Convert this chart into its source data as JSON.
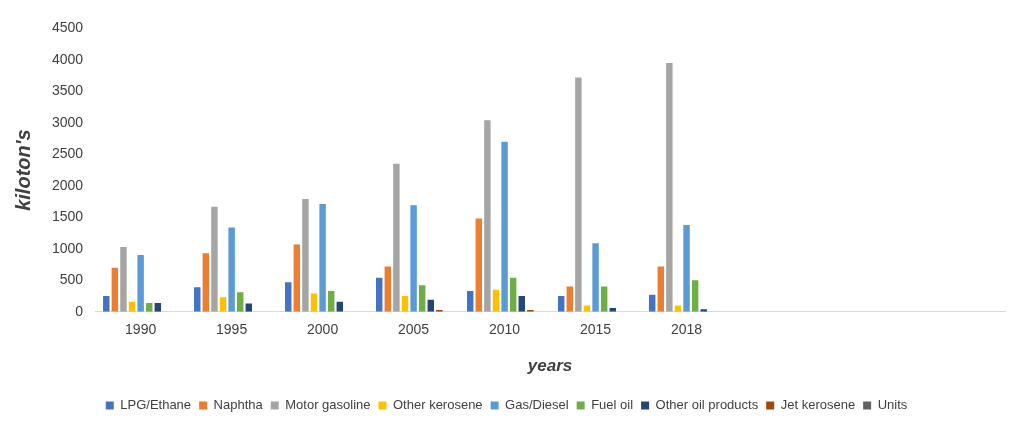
{
  "chart_data": {
    "type": "bar",
    "xlabel": "years",
    "ylabel": "kiloton's",
    "categories": [
      "1990",
      "1995",
      "2000",
      "2005",
      "2010",
      "2015",
      "2018",
      null,
      null,
      null
    ],
    "series": [
      {
        "name": "LPG/Ethane",
        "color": "#4472c4",
        "values": [
          250,
          390,
          470,
          540,
          330,
          250,
          270,
          null,
          null,
          null
        ]
      },
      {
        "name": "Naphtha",
        "color": "#ed7d31",
        "values": [
          700,
          930,
          1070,
          720,
          1480,
          400,
          720,
          null,
          null,
          null
        ]
      },
      {
        "name": "Motor gasoline",
        "color": "#a5a5a5",
        "values": [
          1030,
          1670,
          1790,
          2350,
          3040,
          3720,
          3950,
          null,
          null,
          null
        ]
      },
      {
        "name": "Other kerosene",
        "color": "#ffc000",
        "values": [
          160,
          230,
          290,
          250,
          350,
          100,
          100,
          null,
          null,
          null
        ]
      },
      {
        "name": "Gas/Diesel",
        "color": "#5b9bd5",
        "values": [
          900,
          1340,
          1710,
          1690,
          2700,
          1090,
          1380,
          null,
          null,
          null
        ]
      },
      {
        "name": "Fuel oil",
        "color": "#70ad47",
        "values": [
          140,
          310,
          330,
          420,
          540,
          400,
          500,
          null,
          null,
          null
        ]
      },
      {
        "name": "Other oil products",
        "color": "#264478",
        "values": [
          140,
          130,
          160,
          190,
          250,
          60,
          40,
          null,
          null,
          null
        ]
      },
      {
        "name": "Jet kerosene",
        "color": "#9e480e",
        "values": [
          0,
          0,
          0,
          30,
          30,
          0,
          0,
          null,
          null,
          null
        ]
      },
      {
        "name": "Units",
        "color": "#636363",
        "values": [
          null,
          null,
          null,
          null,
          null,
          null,
          null,
          null,
          null,
          null
        ]
      }
    ],
    "ylim": [
      0,
      4500
    ],
    "yticks": [
      0,
      500,
      1000,
      1500,
      2000,
      2500,
      3000,
      3500,
      4000,
      4500
    ],
    "grid": false,
    "legend": "bottom"
  }
}
